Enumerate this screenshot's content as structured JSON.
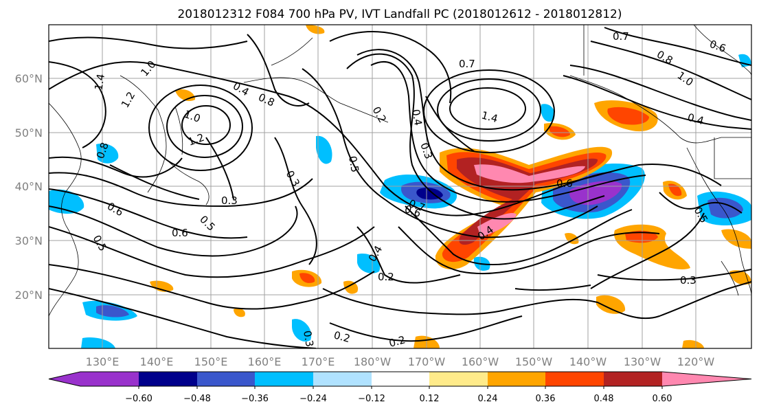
{
  "title": "2018012312 F084 700 hPa PV, IVT Landfall PC (2018012612 - 2018012812)",
  "lon_ticks": [
    "130°E",
    "140°E",
    "150°E",
    "160°E",
    "170°E",
    "180°W",
    "170°W",
    "160°W",
    "150°W",
    "140°W",
    "130°W",
    "120°W"
  ],
  "lat_ticks": [
    "60°N",
    "50°N",
    "40°N",
    "30°N",
    "20°N"
  ],
  "colorbar": {
    "colors": [
      "#9932cc",
      "#00008b",
      "#3a57cc",
      "#00bfff",
      "#b0e2ff",
      "#ffffff",
      "#ffeb8a",
      "#ffa500",
      "#ff4500",
      "#b22222",
      "#ff88b0"
    ],
    "labels": [
      "−0.60",
      "−0.48",
      "−0.36",
      "−0.24",
      "−0.12",
      "0.12",
      "0.24",
      "0.36",
      "0.48",
      "0.60"
    ]
  },
  "contour_labels": [
    "1.4",
    "1.2",
    "1.0",
    "0.8",
    "0.6",
    "0.5",
    "0.3",
    "0.4",
    "0.2",
    "0.7",
    "0.3",
    "0.6",
    "0.5",
    "0.3",
    "1.0",
    "1.2",
    "0.8",
    "0.6",
    "0.4",
    "0.2",
    "0.7",
    "0.4",
    "0.2",
    "0.3",
    "0.4",
    "0.2",
    "0.3",
    "0.6",
    "0.5",
    "1.4",
    "0.8",
    "1.0",
    "0.7",
    "0.6",
    "0.4",
    "0.5"
  ]
}
